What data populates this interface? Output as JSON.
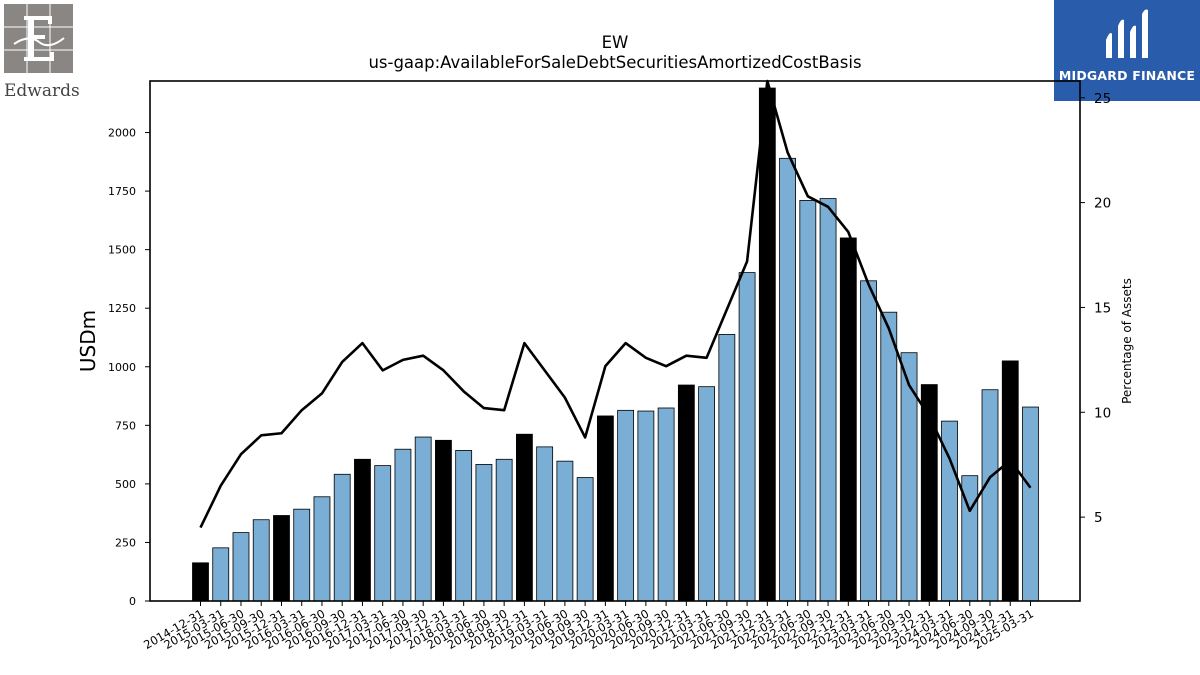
{
  "title": "EW",
  "subtitle": "us-gaap:AvailableForSaleDebtSecuritiesAmortizedCostBasis",
  "logos": {
    "left": {
      "name": "Edwards"
    },
    "right": {
      "name": "MIDGARD FINANCE"
    }
  },
  "chart_data": {
    "type": "bar",
    "categories": [
      "2014-12-31",
      "2015-03-31",
      "2015-06-30",
      "2015-09-30",
      "2015-12-31",
      "2016-03-31",
      "2016-06-30",
      "2016-09-30",
      "2016-12-31",
      "2017-03-31",
      "2017-06-30",
      "2017-09-30",
      "2017-12-31",
      "2018-03-31",
      "2018-06-30",
      "2018-09-30",
      "2018-12-31",
      "2019-03-31",
      "2019-06-30",
      "2019-09-30",
      "2019-12-31",
      "2020-03-31",
      "2020-06-30",
      "2020-09-30",
      "2020-12-31",
      "2021-03-31",
      "2021-06-30",
      "2021-09-30",
      "2021-12-31",
      "2022-03-31",
      "2022-06-30",
      "2022-09-30",
      "2022-12-31",
      "2023-03-31",
      "2023-06-30",
      "2023-09-30",
      "2023-12-31",
      "2024-03-31",
      "2024-06-30",
      "2024-09-30",
      "2024-12-31",
      "2025-03-31"
    ],
    "series": [
      {
        "axis": "left",
        "kind": "bar",
        "values": [
          163,
          227,
          292,
          347,
          365,
          392,
          445,
          541,
          605,
          578,
          648,
          700,
          686,
          643,
          583,
          605,
          712,
          658,
          597,
          527,
          790,
          814,
          811,
          824,
          922,
          915,
          1138,
          1402,
          2190,
          1890,
          1710,
          1718,
          1550,
          1367,
          1233,
          1060,
          924,
          768,
          535,
          902,
          1025,
          828
        ],
        "highlight": [
          true,
          false,
          false,
          false,
          true,
          false,
          false,
          false,
          true,
          false,
          false,
          false,
          true,
          false,
          false,
          false,
          true,
          false,
          false,
          false,
          true,
          false,
          false,
          false,
          true,
          false,
          false,
          false,
          true,
          false,
          false,
          false,
          true,
          false,
          false,
          false,
          true,
          false,
          false,
          false,
          true,
          false
        ]
      },
      {
        "axis": "right",
        "kind": "line",
        "values": [
          4.5,
          6.5,
          8.0,
          8.9,
          9.0,
          10.1,
          10.9,
          12.4,
          13.3,
          12.0,
          12.5,
          12.7,
          12.0,
          11.0,
          10.2,
          10.1,
          13.3,
          12.0,
          10.7,
          8.8,
          12.2,
          13.3,
          12.6,
          12.2,
          12.7,
          12.6,
          14.9,
          17.2,
          25.8,
          22.4,
          20.3,
          19.8,
          18.6,
          16.1,
          14.0,
          11.3,
          9.8,
          7.8,
          5.3,
          6.9,
          7.7,
          6.4
        ]
      }
    ],
    "ylabel": "USDm",
    "y2label": "Percentage of Assets",
    "ylim": [
      0,
      2220
    ],
    "y2lim": [
      1.0,
      25.8
    ],
    "yticks": [
      0,
      250,
      500,
      750,
      1000,
      1250,
      1500,
      1750,
      2000
    ],
    "y2ticks": [
      5,
      10,
      15,
      20,
      25
    ],
    "colors": {
      "bar": "#7aaed4",
      "bar_highlight": "#000000",
      "line": "#000000"
    },
    "grid": false
  }
}
